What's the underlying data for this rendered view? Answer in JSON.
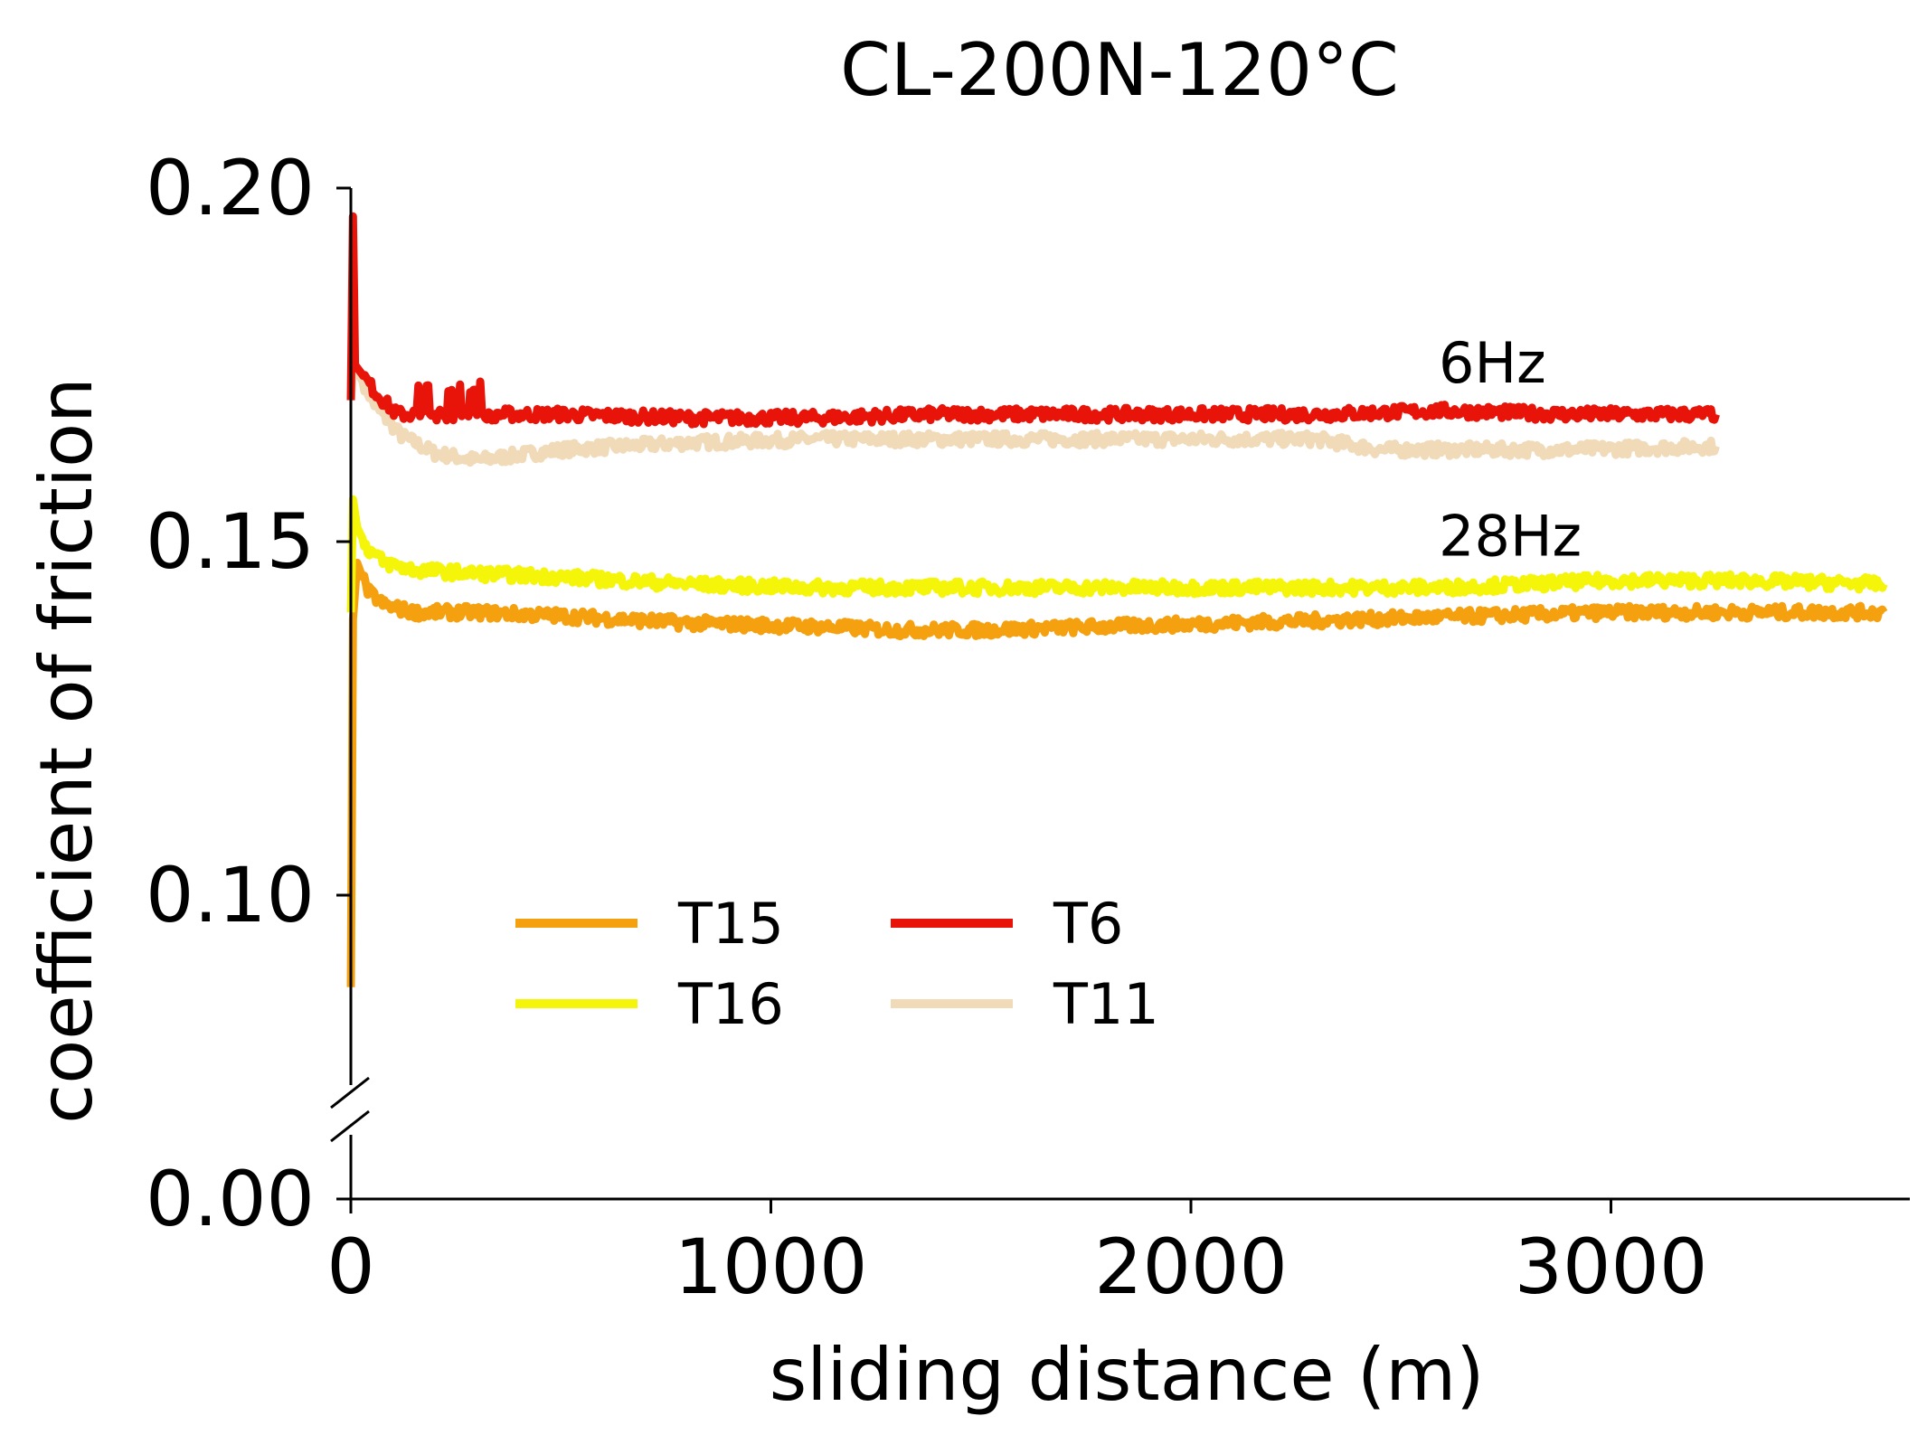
{
  "chart_data": {
    "type": "line",
    "title": "CL-200N-120°C",
    "xlabel": "sliding distance (m)",
    "ylabel": "coefficient of friction",
    "xlim": [
      0,
      3700
    ],
    "ylim": [
      0,
      0.2
    ],
    "axis_break": [
      0.0,
      0.07
    ],
    "xticks": [
      0,
      1000,
      2000,
      3000
    ],
    "xtick_labels": [
      "0",
      "1000",
      "2000",
      "3000"
    ],
    "yticks": [
      0.0,
      0.1,
      0.15,
      0.2
    ],
    "ytick_labels": [
      "0.00",
      "0.10",
      "0.15",
      "0.20"
    ],
    "annotations": [
      {
        "text": "6Hz",
        "x": 2590,
        "y": 0.1725
      },
      {
        "text": "28Hz",
        "x": 2590,
        "y": 0.148
      }
    ],
    "legend": {
      "placement": "lower-left",
      "ncol": 2
    },
    "series": [
      {
        "name": "T15",
        "color": "#F5A00E",
        "x": [
          0,
          5,
          15,
          40,
          80,
          150,
          300,
          500,
          800,
          1100,
          1300,
          1500,
          1800,
          2100,
          2400,
          2700,
          3000,
          3300,
          3650
        ],
        "y": [
          0.087,
          0.139,
          0.147,
          0.143,
          0.141,
          0.14,
          0.14,
          0.1395,
          0.1385,
          0.138,
          0.1375,
          0.1375,
          0.138,
          0.1385,
          0.139,
          0.1395,
          0.14,
          0.14,
          0.14
        ]
      },
      {
        "name": "T16",
        "color": "#F5F50A",
        "x": [
          0,
          5,
          15,
          40,
          80,
          150,
          300,
          500,
          800,
          1100,
          1400,
          1700,
          2000,
          2300,
          2600,
          2800,
          3000,
          3300,
          3650
        ],
        "y": [
          0.14,
          0.156,
          0.152,
          0.149,
          0.147,
          0.146,
          0.1455,
          0.145,
          0.144,
          0.1435,
          0.1435,
          0.1435,
          0.1435,
          0.1435,
          0.1435,
          0.144,
          0.1445,
          0.1445,
          0.144
        ]
      },
      {
        "name": "T6",
        "color": "#E8140A",
        "x": [
          0,
          5,
          10,
          60,
          110,
          200,
          300,
          500,
          800,
          1100,
          1400,
          1700,
          2000,
          2300,
          2600,
          2900,
          3250
        ],
        "y": [
          0.17,
          0.196,
          0.175,
          0.171,
          0.168,
          0.168,
          0.168,
          0.168,
          0.1675,
          0.1675,
          0.168,
          0.168,
          0.168,
          0.168,
          0.1685,
          0.168,
          0.168
        ]
      },
      {
        "name": "T11",
        "color": "#F0DAB8",
        "x": [
          0,
          5,
          20,
          60,
          120,
          200,
          300,
          500,
          800,
          1100,
          1400,
          1700,
          2000,
          2300,
          2450,
          2600,
          2900,
          3250
        ],
        "y": [
          0.17,
          0.174,
          0.1735,
          0.169,
          0.165,
          0.1625,
          0.1615,
          0.163,
          0.164,
          0.1645,
          0.1645,
          0.1645,
          0.1645,
          0.1645,
          0.163,
          0.163,
          0.163,
          0.1635
        ]
      }
    ]
  }
}
